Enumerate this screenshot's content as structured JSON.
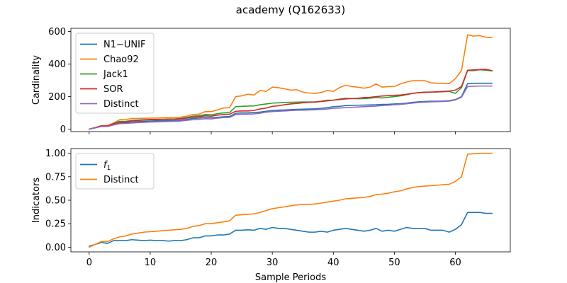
{
  "title": "academy (Q162633)",
  "colors": {
    "blue": "#1f77b4",
    "orange": "#ff7f0e",
    "green": "#2ca02c",
    "red": "#d62728",
    "purple": "#9467bd"
  },
  "chart_data": [
    {
      "type": "line",
      "ylabel": "Cardinality",
      "xlim": [
        -3,
        69
      ],
      "ylim": [
        -15,
        620
      ],
      "xticks": [
        0,
        10,
        20,
        30,
        40,
        50,
        60
      ],
      "yticks": [
        0,
        200,
        400,
        600
      ],
      "show_xtick_labels": false,
      "grid": false,
      "legend": "upper left",
      "x": [
        0,
        1,
        2,
        3,
        4,
        5,
        6,
        7,
        8,
        9,
        10,
        11,
        12,
        13,
        14,
        15,
        16,
        17,
        18,
        19,
        20,
        21,
        22,
        23,
        24,
        25,
        26,
        27,
        28,
        29,
        30,
        31,
        32,
        33,
        34,
        35,
        36,
        37,
        38,
        39,
        40,
        41,
        42,
        43,
        44,
        45,
        46,
        47,
        48,
        49,
        50,
        51,
        52,
        53,
        54,
        55,
        56,
        57,
        58,
        59,
        60,
        61,
        62,
        63,
        64,
        65,
        66
      ],
      "series": [
        {
          "name": "N1−UNIF",
          "color": "#1f77b4",
          "values": [
            0,
            8,
            18,
            18,
            28,
            38,
            38,
            42,
            46,
            48,
            50,
            51,
            51,
            52,
            53,
            56,
            60,
            66,
            68,
            72,
            70,
            73,
            76,
            78,
            98,
            100,
            100,
            102,
            105,
            110,
            115,
            117,
            118,
            120,
            122,
            123,
            124,
            125,
            128,
            132,
            138,
            140,
            145,
            146,
            147,
            148,
            149,
            150,
            152,
            153,
            155,
            156,
            160,
            165,
            168,
            170,
            172,
            172,
            173,
            175,
            182,
            200,
            280,
            282,
            282,
            282,
            282
          ]
        },
        {
          "name": "Chao92",
          "color": "#ff7f0e",
          "values": [
            0,
            10,
            22,
            22,
            38,
            58,
            60,
            65,
            66,
            67,
            68,
            68,
            70,
            70,
            72,
            74,
            80,
            90,
            92,
            108,
            108,
            118,
            130,
            132,
            200,
            205,
            215,
            210,
            238,
            232,
            258,
            255,
            248,
            240,
            242,
            228,
            222,
            220,
            225,
            238,
            232,
            255,
            270,
            262,
            258,
            252,
            258,
            278,
            258,
            262,
            262,
            278,
            290,
            298,
            298,
            298,
            285,
            282,
            282,
            280,
            310,
            360,
            580,
            572,
            575,
            565,
            562
          ]
        },
        {
          "name": "Jack1",
          "color": "#2ca02c",
          "values": [
            0,
            10,
            18,
            18,
            35,
            48,
            48,
            54,
            56,
            58,
            60,
            60,
            61,
            62,
            63,
            66,
            72,
            80,
            82,
            90,
            88,
            95,
            100,
            102,
            138,
            140,
            142,
            143,
            150,
            155,
            160,
            162,
            164,
            165,
            166,
            167,
            167,
            168,
            172,
            178,
            178,
            185,
            190,
            188,
            187,
            188,
            190,
            195,
            192,
            196,
            200,
            205,
            212,
            220,
            225,
            228,
            228,
            228,
            230,
            232,
            220,
            255,
            360,
            360,
            365,
            362,
            358
          ]
        },
        {
          "name": "SOR",
          "color": "#d62728",
          "values": [
            0,
            10,
            20,
            20,
            32,
            42,
            44,
            50,
            53,
            56,
            58,
            58,
            59,
            60,
            61,
            64,
            68,
            74,
            76,
            82,
            80,
            86,
            90,
            92,
            110,
            112,
            112,
            115,
            124,
            130,
            140,
            144,
            150,
            155,
            158,
            162,
            165,
            166,
            170,
            174,
            178,
            182,
            186,
            188,
            190,
            194,
            196,
            200,
            204,
            206,
            208,
            210,
            214,
            220,
            224,
            226,
            228,
            230,
            232,
            234,
            240,
            262,
            362,
            364,
            366,
            368,
            360
          ]
        },
        {
          "name": "Distinct",
          "color": "#9467bd",
          "values": [
            0,
            8,
            16,
            16,
            26,
            34,
            35,
            38,
            40,
            42,
            44,
            45,
            46,
            47,
            48,
            50,
            54,
            58,
            60,
            64,
            63,
            68,
            71,
            72,
            90,
            92,
            92,
            94,
            98,
            104,
            108,
            110,
            112,
            114,
            116,
            117,
            118,
            119,
            121,
            124,
            128,
            130,
            132,
            134,
            136,
            138,
            140,
            142,
            145,
            147,
            150,
            152,
            156,
            160,
            164,
            166,
            168,
            169,
            170,
            172,
            180,
            196,
            262,
            264,
            265,
            265,
            265
          ]
        }
      ]
    },
    {
      "type": "line",
      "xlabel": "Sample Periods",
      "ylabel": "Indicators",
      "xlim": [
        -3,
        69
      ],
      "ylim": [
        -0.05,
        1.05
      ],
      "xticks": [
        0,
        10,
        20,
        30,
        40,
        50,
        60
      ],
      "yticks": [
        0.0,
        0.25,
        0.5,
        0.75,
        1.0
      ],
      "ytick_labels": [
        "0.00",
        "0.25",
        "0.50",
        "0.75",
        "1.00"
      ],
      "grid": false,
      "legend": "upper left",
      "x": [
        0,
        1,
        2,
        3,
        4,
        5,
        6,
        7,
        8,
        9,
        10,
        11,
        12,
        13,
        14,
        15,
        16,
        17,
        18,
        19,
        20,
        21,
        22,
        23,
        24,
        25,
        26,
        27,
        28,
        29,
        30,
        31,
        32,
        33,
        34,
        35,
        36,
        37,
        38,
        39,
        40,
        41,
        42,
        43,
        44,
        45,
        46,
        47,
        48,
        49,
        50,
        51,
        52,
        53,
        54,
        55,
        56,
        57,
        58,
        59,
        60,
        61,
        62,
        63,
        64,
        65,
        66
      ],
      "series": [
        {
          "name": "f",
          "name_subscript": "1",
          "color": "#1f77b4",
          "values": [
            0.01,
            0.03,
            0.05,
            0.04,
            0.07,
            0.07,
            0.07,
            0.08,
            0.075,
            0.07,
            0.075,
            0.07,
            0.07,
            0.065,
            0.07,
            0.07,
            0.08,
            0.1,
            0.1,
            0.12,
            0.12,
            0.13,
            0.13,
            0.14,
            0.18,
            0.18,
            0.185,
            0.18,
            0.2,
            0.19,
            0.21,
            0.2,
            0.2,
            0.19,
            0.18,
            0.17,
            0.16,
            0.16,
            0.17,
            0.16,
            0.18,
            0.19,
            0.2,
            0.19,
            0.18,
            0.17,
            0.18,
            0.2,
            0.17,
            0.18,
            0.17,
            0.19,
            0.21,
            0.2,
            0.2,
            0.2,
            0.18,
            0.18,
            0.18,
            0.16,
            0.19,
            0.24,
            0.37,
            0.37,
            0.37,
            0.36,
            0.36
          ]
        },
        {
          "name": "Distinct",
          "color": "#ff7f0e",
          "values": [
            0.0,
            0.03,
            0.06,
            0.06,
            0.09,
            0.11,
            0.12,
            0.14,
            0.15,
            0.16,
            0.165,
            0.17,
            0.175,
            0.18,
            0.185,
            0.19,
            0.2,
            0.22,
            0.23,
            0.25,
            0.25,
            0.26,
            0.27,
            0.28,
            0.34,
            0.345,
            0.35,
            0.355,
            0.37,
            0.39,
            0.41,
            0.42,
            0.43,
            0.44,
            0.45,
            0.455,
            0.455,
            0.46,
            0.47,
            0.48,
            0.49,
            0.5,
            0.515,
            0.52,
            0.525,
            0.53,
            0.54,
            0.56,
            0.565,
            0.575,
            0.59,
            0.6,
            0.62,
            0.635,
            0.645,
            0.65,
            0.655,
            0.66,
            0.665,
            0.67,
            0.7,
            0.75,
            0.99,
            0.995,
            1.0,
            1.0,
            1.0
          ]
        }
      ]
    }
  ]
}
